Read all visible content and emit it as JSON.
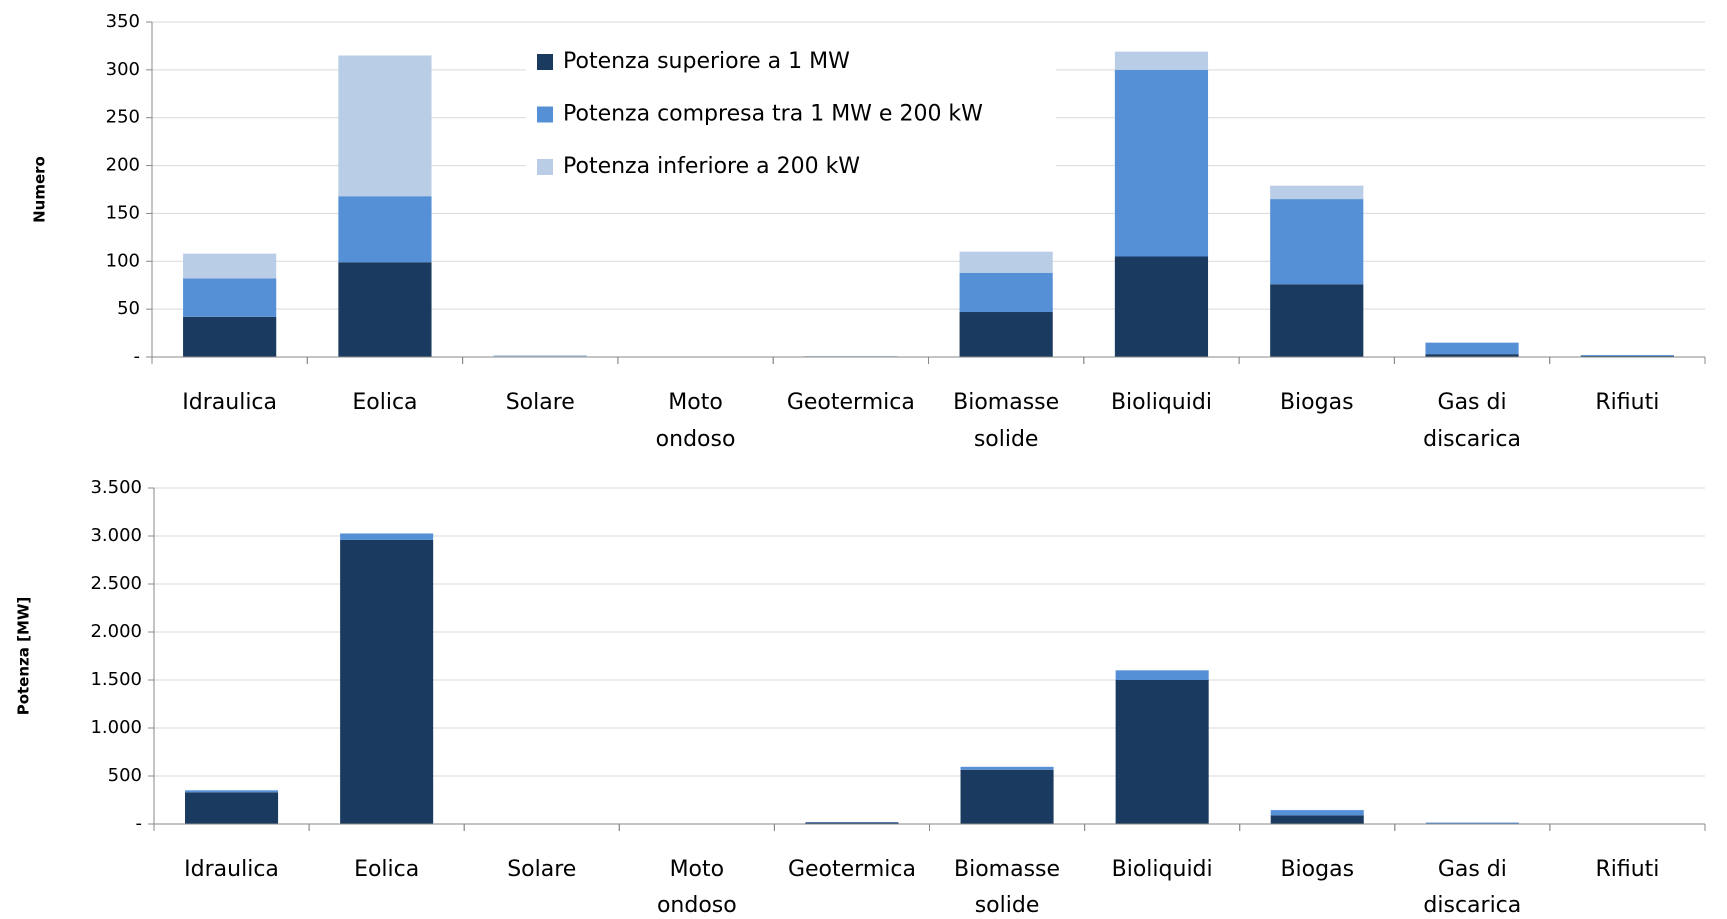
{
  "chart_data": [
    {
      "type": "bar",
      "stacked": true,
      "ylabel": "Numero",
      "categories": [
        "Idraulica",
        "Eolica",
        "Solare",
        "Moto ondoso",
        "Geotermica",
        "Biomasse solide",
        "Bioliquidi",
        "Biogas",
        "Gas di discarica",
        "Rifiuti"
      ],
      "series": [
        {
          "name": "Potenza superiore a 1 MW",
          "color": "#1b3a60",
          "values": [
            42,
            99,
            0,
            0,
            0,
            47,
            105,
            76,
            3,
            1
          ]
        },
        {
          "name": "Potenza compresa tra 1 MW e 200 kW",
          "color": "#5590d6",
          "values": [
            40,
            69,
            0,
            0,
            0,
            41,
            195,
            89,
            12,
            1
          ]
        },
        {
          "name": "Potenza inferiore a 200 kW",
          "color": "#b9cde6",
          "values": [
            26,
            147,
            2,
            0,
            1,
            22,
            19,
            14,
            0,
            0
          ]
        }
      ],
      "ylim": [
        0,
        350
      ],
      "yticks": [
        {
          "value": 0,
          "label": "-"
        },
        50,
        100,
        150,
        200,
        250,
        300,
        350
      ],
      "grid": true,
      "legend": "top-center"
    },
    {
      "type": "bar",
      "stacked": true,
      "ylabel": "Potenza [MW]",
      "categories": [
        "Idraulica",
        "Eolica",
        "Solare",
        "Moto ondoso",
        "Geotermica",
        "Biomasse solide",
        "Bioliquidi",
        "Biogas",
        "Gas di discarica",
        "Rifiuti"
      ],
      "series": [
        {
          "color": "#1b3a60",
          "values": [
            330,
            2960,
            0,
            0,
            15,
            565,
            1500,
            90,
            5,
            1
          ]
        },
        {
          "color": "#5590d6",
          "values": [
            20,
            65,
            0,
            0,
            5,
            30,
            100,
            55,
            10,
            1
          ]
        },
        {
          "color": "#b9cde6",
          "values": [
            5,
            5,
            1,
            0,
            0,
            3,
            3,
            2,
            0,
            0
          ]
        }
      ],
      "ylim": [
        0,
        3500
      ],
      "yticks": [
        {
          "value": 0,
          "label": "-"
        },
        500,
        {
          "value": 1000,
          "label": "1.000"
        },
        {
          "value": 1500,
          "label": "1.500"
        },
        {
          "value": 2000,
          "label": "2.000"
        },
        {
          "value": 2500,
          "label": "2.500"
        },
        {
          "value": 3000,
          "label": "3.000"
        },
        {
          "value": 3500,
          "label": "3.500"
        }
      ],
      "grid": true
    }
  ]
}
